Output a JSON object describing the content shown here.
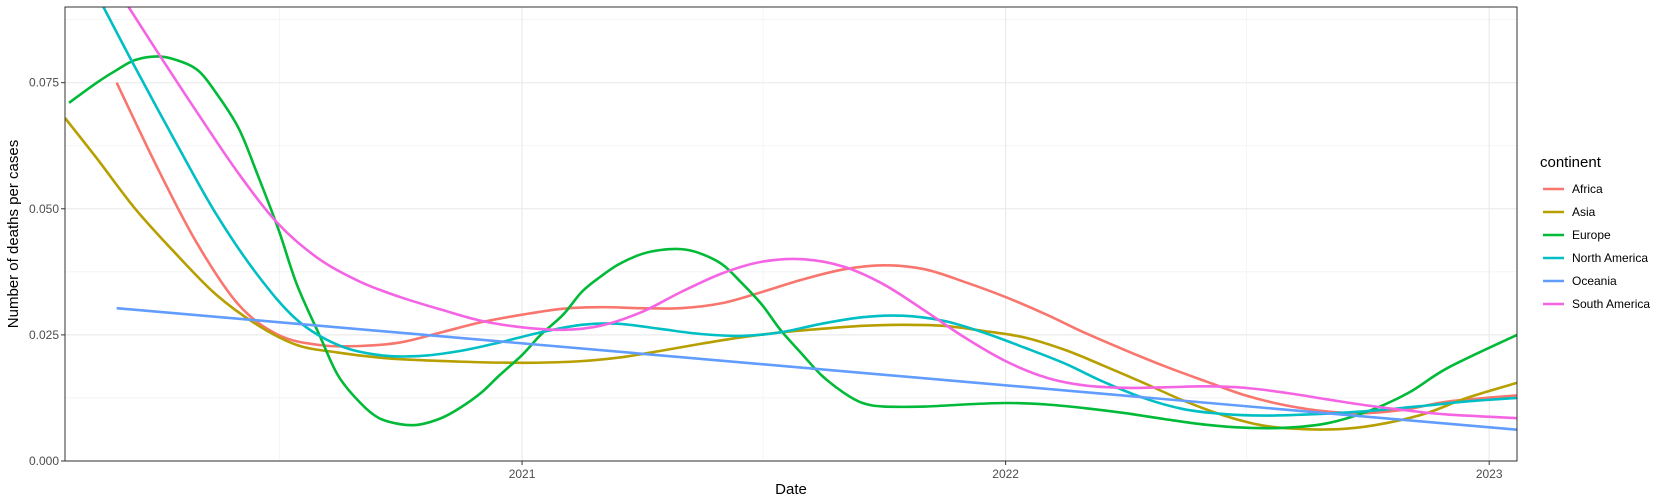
{
  "chart_data": {
    "type": "line",
    "xlabel": "Date",
    "ylabel": "Number of deaths per cases",
    "x_range": [
      "2020-01-22",
      "2023-01-22"
    ],
    "ylim": [
      0,
      0.09
    ],
    "x_ticks": [
      {
        "date": "2021-01-01",
        "label": "2021"
      },
      {
        "date": "2022-01-01",
        "label": "2022"
      },
      {
        "date": "2023-01-01",
        "label": "2023"
      }
    ],
    "y_ticks": [
      {
        "value": 0.0,
        "label": "0.000"
      },
      {
        "value": 0.025,
        "label": "0.025"
      },
      {
        "value": 0.05,
        "label": "0.050"
      },
      {
        "value": 0.075,
        "label": "0.075"
      }
    ],
    "grid": true,
    "legend": {
      "title": "continent",
      "position": "right"
    },
    "series": [
      {
        "name": "Africa",
        "color": "#F8766D",
        "points": [
          [
            "2020-03-01",
            0.075
          ],
          [
            "2020-04-01",
            0.058
          ],
          [
            "2020-05-01",
            0.043
          ],
          [
            "2020-06-01",
            0.031
          ],
          [
            "2020-07-01",
            0.025
          ],
          [
            "2020-08-01",
            0.023
          ],
          [
            "2020-09-01",
            0.0228
          ],
          [
            "2020-10-01",
            0.0235
          ],
          [
            "2020-11-01",
            0.0255
          ],
          [
            "2020-12-01",
            0.0275
          ],
          [
            "2021-01-01",
            0.029
          ],
          [
            "2021-02-01",
            0.0302
          ],
          [
            "2021-03-01",
            0.0305
          ],
          [
            "2021-04-01",
            0.0303
          ],
          [
            "2021-05-01",
            0.0303
          ],
          [
            "2021-06-01",
            0.0313
          ],
          [
            "2021-07-01",
            0.0335
          ],
          [
            "2021-08-01",
            0.036
          ],
          [
            "2021-09-01",
            0.038
          ],
          [
            "2021-10-01",
            0.0388
          ],
          [
            "2021-11-01",
            0.038
          ],
          [
            "2021-12-01",
            0.0355
          ],
          [
            "2022-01-01",
            0.0325
          ],
          [
            "2022-02-01",
            0.029
          ],
          [
            "2022-03-01",
            0.0255
          ],
          [
            "2022-04-01",
            0.022
          ],
          [
            "2022-05-01",
            0.0188
          ],
          [
            "2022-06-01",
            0.0158
          ],
          [
            "2022-07-01",
            0.013
          ],
          [
            "2022-08-01",
            0.011
          ],
          [
            "2022-09-01",
            0.0098
          ],
          [
            "2022-10-01",
            0.0095
          ],
          [
            "2022-11-01",
            0.0103
          ],
          [
            "2022-12-01",
            0.0118
          ],
          [
            "2023-01-22",
            0.013
          ]
        ]
      },
      {
        "name": "Asia",
        "color": "#B79F00",
        "points": [
          [
            "2020-01-22",
            0.068
          ],
          [
            "2020-02-15",
            0.06
          ],
          [
            "2020-03-15",
            0.05
          ],
          [
            "2020-04-15",
            0.041
          ],
          [
            "2020-05-15",
            0.033
          ],
          [
            "2020-06-15",
            0.027
          ],
          [
            "2020-07-15",
            0.023
          ],
          [
            "2020-08-15",
            0.0215
          ],
          [
            "2020-09-15",
            0.0205
          ],
          [
            "2020-10-15",
            0.02
          ],
          [
            "2020-11-15",
            0.0197
          ],
          [
            "2020-12-15",
            0.0195
          ],
          [
            "2021-01-15",
            0.0195
          ],
          [
            "2021-02-15",
            0.0198
          ],
          [
            "2021-03-15",
            0.0205
          ],
          [
            "2021-04-15",
            0.0218
          ],
          [
            "2021-05-15",
            0.0232
          ],
          [
            "2021-06-15",
            0.0245
          ],
          [
            "2021-07-15",
            0.0255
          ],
          [
            "2021-08-15",
            0.0262
          ],
          [
            "2021-09-15",
            0.0268
          ],
          [
            "2021-10-15",
            0.027
          ],
          [
            "2021-11-15",
            0.0268
          ],
          [
            "2021-12-15",
            0.0258
          ],
          [
            "2022-01-15",
            0.0245
          ],
          [
            "2022-02-15",
            0.022
          ],
          [
            "2022-03-15",
            0.019
          ],
          [
            "2022-04-15",
            0.0155
          ],
          [
            "2022-05-15",
            0.012
          ],
          [
            "2022-06-15",
            0.009
          ],
          [
            "2022-07-15",
            0.007
          ],
          [
            "2022-08-15",
            0.0063
          ],
          [
            "2022-09-15",
            0.0064
          ],
          [
            "2022-10-15",
            0.0075
          ],
          [
            "2022-11-15",
            0.0095
          ],
          [
            "2022-12-15",
            0.0125
          ],
          [
            "2023-01-22",
            0.0155
          ]
        ]
      },
      {
        "name": "Europe",
        "color": "#00BA38",
        "points": [
          [
            "2020-01-25",
            0.071
          ],
          [
            "2020-02-15",
            0.075
          ],
          [
            "2020-03-01",
            0.0775
          ],
          [
            "2020-03-15",
            0.0795
          ],
          [
            "2020-04-01",
            0.0802
          ],
          [
            "2020-04-15",
            0.0795
          ],
          [
            "2020-05-01",
            0.0775
          ],
          [
            "2020-05-15",
            0.073
          ],
          [
            "2020-06-01",
            0.066
          ],
          [
            "2020-06-15",
            0.057
          ],
          [
            "2020-07-01",
            0.046
          ],
          [
            "2020-07-15",
            0.035
          ],
          [
            "2020-08-01",
            0.025
          ],
          [
            "2020-08-15",
            0.017
          ],
          [
            "2020-09-01",
            0.0115
          ],
          [
            "2020-09-15",
            0.0085
          ],
          [
            "2020-10-01",
            0.0073
          ],
          [
            "2020-10-15",
            0.0072
          ],
          [
            "2020-11-01",
            0.0085
          ],
          [
            "2020-11-15",
            0.0105
          ],
          [
            "2020-12-01",
            0.0135
          ],
          [
            "2020-12-15",
            0.017
          ],
          [
            "2021-01-01",
            0.021
          ],
          [
            "2021-01-15",
            0.025
          ],
          [
            "2021-02-01",
            0.029
          ],
          [
            "2021-02-15",
            0.0335
          ],
          [
            "2021-03-01",
            0.0365
          ],
          [
            "2021-03-15",
            0.039
          ],
          [
            "2021-04-01",
            0.041
          ],
          [
            "2021-04-15",
            0.0418
          ],
          [
            "2021-05-01",
            0.042
          ],
          [
            "2021-05-15",
            0.0412
          ],
          [
            "2021-06-01",
            0.039
          ],
          [
            "2021-06-15",
            0.0355
          ],
          [
            "2021-07-01",
            0.031
          ],
          [
            "2021-07-15",
            0.026
          ],
          [
            "2021-08-01",
            0.021
          ],
          [
            "2021-08-15",
            0.017
          ],
          [
            "2021-09-01",
            0.0135
          ],
          [
            "2021-09-15",
            0.0115
          ],
          [
            "2021-10-01",
            0.0108
          ],
          [
            "2021-11-01",
            0.0108
          ],
          [
            "2021-12-01",
            0.0112
          ],
          [
            "2022-01-01",
            0.0115
          ],
          [
            "2022-02-01",
            0.0112
          ],
          [
            "2022-03-01",
            0.0105
          ],
          [
            "2022-04-01",
            0.0095
          ],
          [
            "2022-05-01",
            0.0083
          ],
          [
            "2022-06-01",
            0.0072
          ],
          [
            "2022-07-01",
            0.0066
          ],
          [
            "2022-08-01",
            0.0066
          ],
          [
            "2022-09-01",
            0.0075
          ],
          [
            "2022-10-01",
            0.0098
          ],
          [
            "2022-11-01",
            0.0135
          ],
          [
            "2022-12-01",
            0.0185
          ],
          [
            "2023-01-22",
            0.025
          ]
        ]
      },
      {
        "name": "North America",
        "color": "#00BFC4",
        "points": [
          [
            "2020-02-20",
            0.09
          ],
          [
            "2020-03-15",
            0.078
          ],
          [
            "2020-04-15",
            0.063
          ],
          [
            "2020-05-15",
            0.049
          ],
          [
            "2020-06-15",
            0.037
          ],
          [
            "2020-07-15",
            0.028
          ],
          [
            "2020-08-15",
            0.023
          ],
          [
            "2020-09-15",
            0.021
          ],
          [
            "2020-10-15",
            0.0208
          ],
          [
            "2020-11-15",
            0.0218
          ],
          [
            "2020-12-15",
            0.0235
          ],
          [
            "2021-01-15",
            0.0255
          ],
          [
            "2021-02-15",
            0.027
          ],
          [
            "2021-03-15",
            0.0272
          ],
          [
            "2021-04-15",
            0.0262
          ],
          [
            "2021-05-15",
            0.0252
          ],
          [
            "2021-06-15",
            0.0248
          ],
          [
            "2021-07-15",
            0.0255
          ],
          [
            "2021-08-15",
            0.0272
          ],
          [
            "2021-09-15",
            0.0285
          ],
          [
            "2021-10-15",
            0.0288
          ],
          [
            "2021-11-15",
            0.0278
          ],
          [
            "2021-12-15",
            0.0255
          ],
          [
            "2022-01-15",
            0.0225
          ],
          [
            "2022-02-15",
            0.0193
          ],
          [
            "2022-03-15",
            0.0158
          ],
          [
            "2022-04-15",
            0.0125
          ],
          [
            "2022-05-15",
            0.0103
          ],
          [
            "2022-06-15",
            0.0093
          ],
          [
            "2022-07-15",
            0.009
          ],
          [
            "2022-08-15",
            0.0092
          ],
          [
            "2022-09-15",
            0.0096
          ],
          [
            "2022-10-15",
            0.0102
          ],
          [
            "2022-11-15",
            0.011
          ],
          [
            "2022-12-15",
            0.0118
          ],
          [
            "2023-01-22",
            0.0125
          ]
        ]
      },
      {
        "name": "Oceania",
        "color": "#619CFF",
        "points": [
          [
            "2020-03-01",
            0.0303
          ],
          [
            "2023-01-22",
            0.0062
          ]
        ]
      },
      {
        "name": "South America",
        "color": "#F564E3",
        "points": [
          [
            "2020-03-10",
            0.09
          ],
          [
            "2020-04-01",
            0.081
          ],
          [
            "2020-05-01",
            0.069
          ],
          [
            "2020-06-01",
            0.057
          ],
          [
            "2020-07-01",
            0.047
          ],
          [
            "2020-08-01",
            0.04
          ],
          [
            "2020-09-01",
            0.0355
          ],
          [
            "2020-10-01",
            0.0325
          ],
          [
            "2020-11-01",
            0.03
          ],
          [
            "2020-12-01",
            0.0278
          ],
          [
            "2021-01-01",
            0.0265
          ],
          [
            "2021-02-01",
            0.026
          ],
          [
            "2021-03-01",
            0.0268
          ],
          [
            "2021-04-01",
            0.0295
          ],
          [
            "2021-05-01",
            0.0335
          ],
          [
            "2021-06-01",
            0.0372
          ],
          [
            "2021-07-01",
            0.0395
          ],
          [
            "2021-08-01",
            0.04
          ],
          [
            "2021-09-01",
            0.0385
          ],
          [
            "2021-10-01",
            0.035
          ],
          [
            "2021-11-01",
            0.0298
          ],
          [
            "2021-12-01",
            0.0245
          ],
          [
            "2022-01-01",
            0.0198
          ],
          [
            "2022-02-01",
            0.0165
          ],
          [
            "2022-03-01",
            0.015
          ],
          [
            "2022-04-01",
            0.0145
          ],
          [
            "2022-05-01",
            0.0146
          ],
          [
            "2022-06-01",
            0.0148
          ],
          [
            "2022-07-01",
            0.0145
          ],
          [
            "2022-08-01",
            0.0135
          ],
          [
            "2022-09-01",
            0.0122
          ],
          [
            "2022-10-01",
            0.011
          ],
          [
            "2022-11-01",
            0.01
          ],
          [
            "2022-12-01",
            0.0092
          ],
          [
            "2023-01-22",
            0.0085
          ]
        ]
      }
    ]
  }
}
